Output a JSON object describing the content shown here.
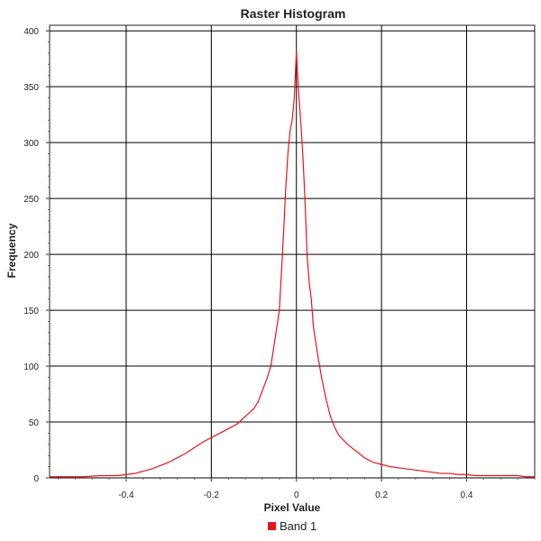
{
  "chart_data": {
    "type": "line",
    "title": "Raster Histogram",
    "xlabel": "Pixel Value",
    "ylabel": "Frequency",
    "xlim": [
      -0.58,
      0.56
    ],
    "ylim": [
      0,
      405
    ],
    "x_ticks": [
      -0.4,
      -0.2,
      0,
      0.2,
      0.4
    ],
    "x_tick_labels": [
      "-0.4",
      "-0.2",
      "0",
      "0.2",
      "0.4"
    ],
    "y_ticks": [
      0,
      50,
      100,
      150,
      200,
      250,
      300,
      350,
      400
    ],
    "y_tick_labels": [
      "0",
      "50",
      "100",
      "150",
      "200",
      "250",
      "300",
      "350",
      "400"
    ],
    "grid": true,
    "legend_position": "bottom-center",
    "series": [
      {
        "name": "Band 1",
        "color": "#e8141a",
        "x": [
          -0.58,
          -0.54,
          -0.5,
          -0.46,
          -0.42,
          -0.4,
          -0.38,
          -0.36,
          -0.34,
          -0.32,
          -0.3,
          -0.28,
          -0.26,
          -0.24,
          -0.22,
          -0.2,
          -0.18,
          -0.16,
          -0.14,
          -0.12,
          -0.1,
          -0.09,
          -0.08,
          -0.07,
          -0.06,
          -0.05,
          -0.04,
          -0.035,
          -0.03,
          -0.025,
          -0.02,
          -0.015,
          -0.01,
          -0.005,
          0,
          0.005,
          0.01,
          0.015,
          0.02,
          0.025,
          0.03,
          0.035,
          0.04,
          0.05,
          0.06,
          0.07,
          0.08,
          0.09,
          0.1,
          0.12,
          0.14,
          0.16,
          0.18,
          0.2,
          0.22,
          0.24,
          0.26,
          0.28,
          0.3,
          0.32,
          0.34,
          0.36,
          0.38,
          0.4,
          0.42,
          0.44,
          0.46,
          0.48,
          0.5,
          0.52,
          0.54,
          0.56
        ],
        "y": [
          1,
          1,
          1,
          2,
          2,
          3,
          4,
          6,
          8,
          11,
          14,
          18,
          22,
          27,
          32,
          36,
          40,
          44,
          48,
          55,
          62,
          68,
          78,
          88,
          100,
          125,
          150,
          185,
          220,
          260,
          290,
          310,
          320,
          340,
          382,
          345,
          320,
          290,
          250,
          200,
          175,
          160,
          135,
          110,
          88,
          70,
          55,
          45,
          38,
          30,
          24,
          18,
          14,
          12,
          10,
          9,
          8,
          7,
          6,
          5,
          4,
          4,
          3,
          3,
          2,
          2,
          2,
          2,
          2,
          2,
          1,
          1
        ]
      }
    ]
  }
}
